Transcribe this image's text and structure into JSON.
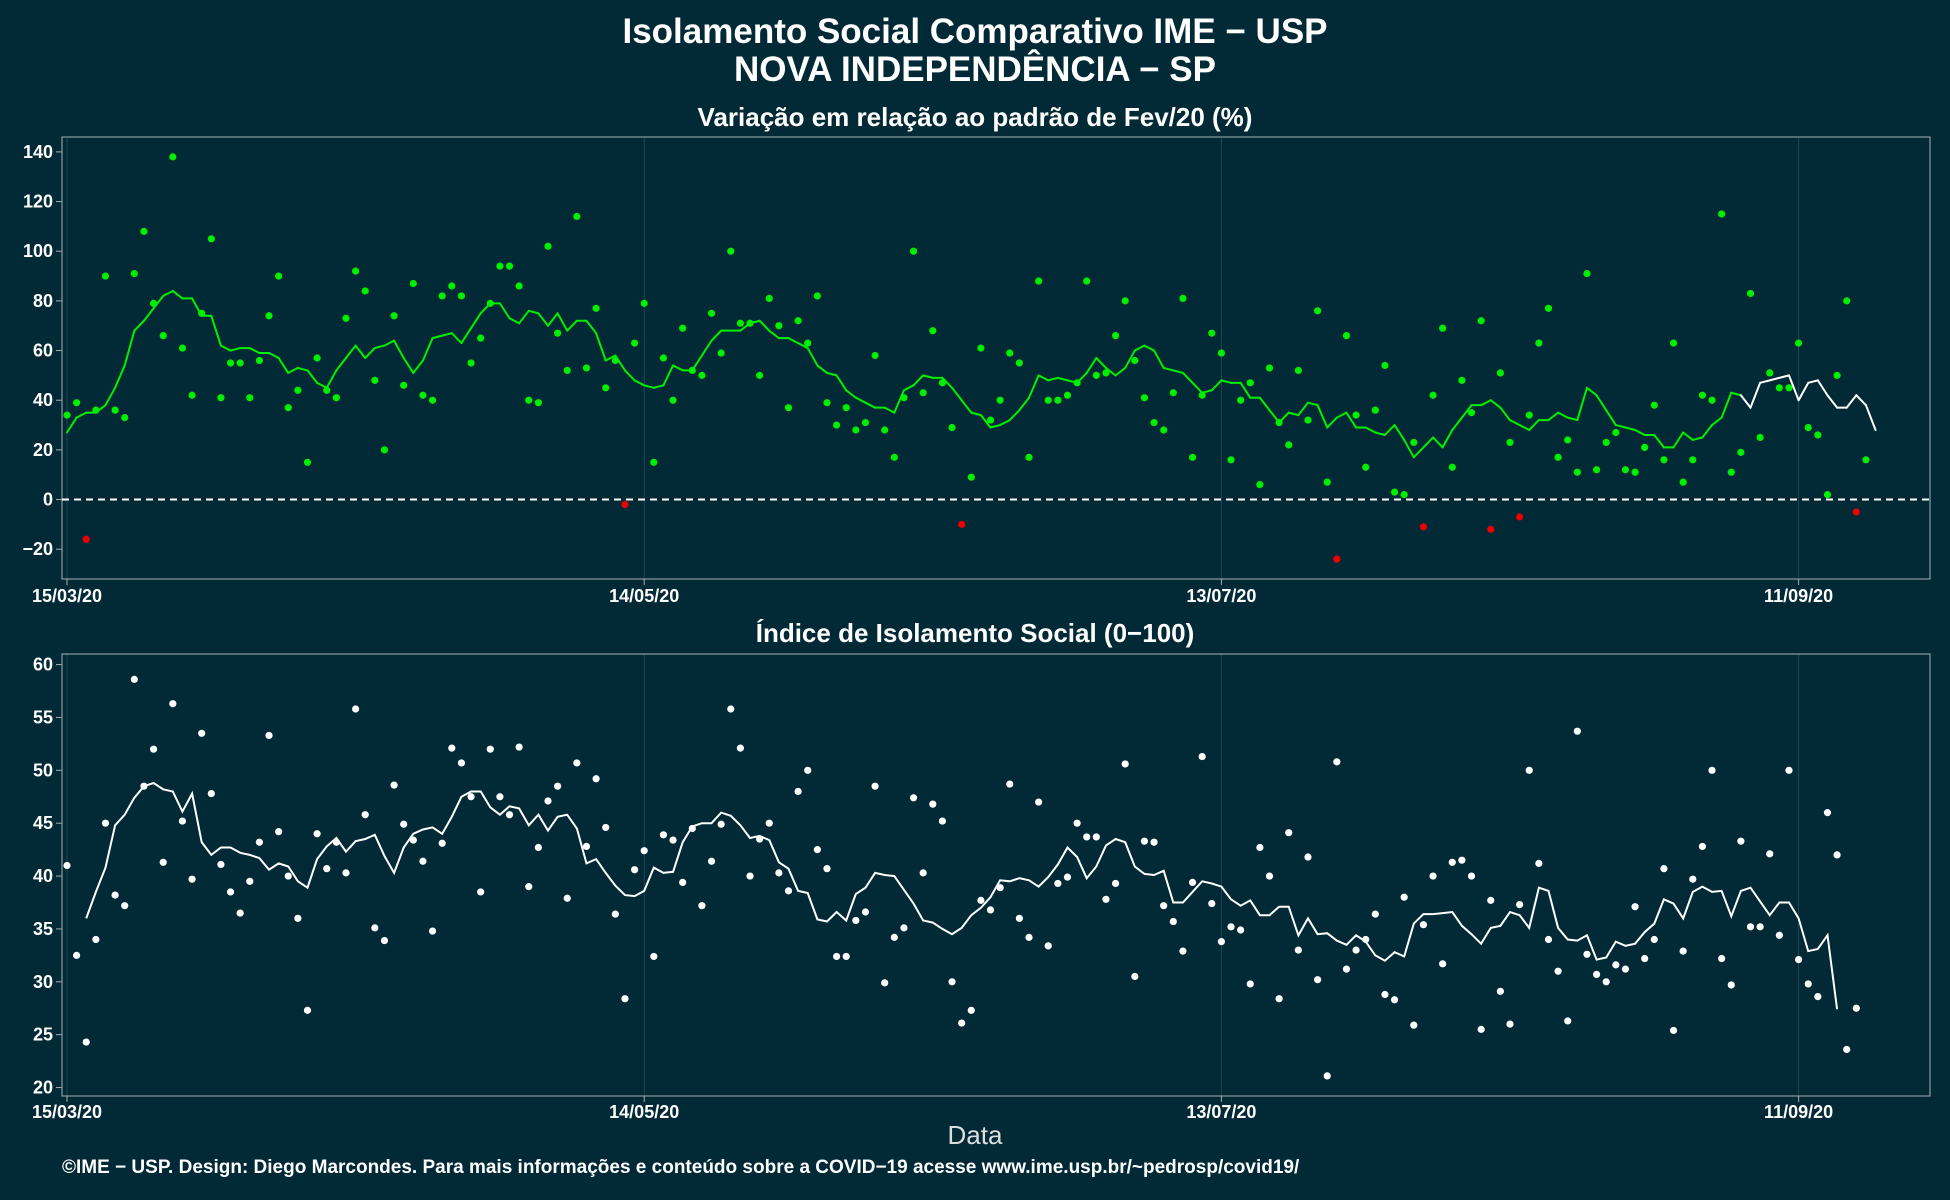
{
  "title_line1": "Isolamento Social Comparativo IME − USP",
  "title_line2": "NOVA INDEPENDÊNCIA − SP",
  "xlabel": "Data",
  "footer": "©IME − USP. Design: Diego Marcondes. Para mais informações e conteúdo sobre a COVID−19 acesse www.ime.usp.br/~pedrosp/covid19/",
  "colors": {
    "background": "#022a36",
    "green": "#00ee00",
    "red": "#ee0000",
    "white": "#ffffff"
  },
  "chart_data": [
    {
      "type": "scatter",
      "title": "Variação em relação ao padrão de Fev/20 (%)",
      "x_ticks": [
        "15/03/20",
        "14/05/20",
        "13/07/20",
        "11/09/20"
      ],
      "y_ticks": [
        -20,
        0,
        20,
        40,
        60,
        80,
        100,
        120,
        140
      ],
      "xlim": [
        "15/03/20",
        "23/09/20"
      ],
      "ylim": [
        -32,
        146
      ],
      "reference_line": 0,
      "grid": true,
      "series": [
        {
          "style": "points",
          "values": [
            34,
            39,
            -16,
            36,
            90,
            36,
            33,
            91,
            108,
            79,
            66,
            138,
            61,
            42,
            75,
            105,
            41,
            55,
            55,
            41,
            56,
            74,
            90,
            37,
            44,
            15,
            57,
            44,
            41,
            73,
            92,
            84,
            48,
            20,
            74,
            46,
            87,
            42,
            40,
            82,
            86,
            82,
            55,
            65,
            79,
            94,
            94,
            86,
            40,
            39,
            102,
            67,
            52,
            114,
            53,
            77,
            45,
            56,
            -2,
            63,
            79,
            15,
            57,
            40,
            69,
            52,
            50,
            75,
            59,
            100,
            71,
            71,
            50,
            81,
            70,
            37,
            72,
            63,
            82,
            39,
            30,
            37,
            28,
            31,
            58,
            28,
            17,
            41,
            100,
            43,
            68,
            47,
            29,
            -10,
            9,
            61,
            32,
            40,
            59,
            55,
            17,
            88,
            40,
            40,
            42,
            47,
            88,
            50,
            51,
            66,
            80,
            56,
            41,
            31,
            28,
            43,
            81,
            17,
            42,
            67,
            59,
            16,
            40,
            47,
            6,
            53,
            31,
            22,
            52,
            32,
            76,
            7,
            -24,
            66,
            34,
            13,
            36,
            54,
            3,
            2,
            23,
            -11,
            42,
            69,
            13,
            48,
            35,
            72,
            -12,
            51,
            23,
            -7,
            34,
            63,
            77,
            17,
            24,
            11,
            91,
            12,
            23,
            27,
            12,
            11,
            21,
            38,
            16,
            63,
            7,
            16,
            42,
            40,
            115,
            11,
            19,
            83,
            25,
            51,
            45,
            45,
            63,
            29,
            26,
            2,
            50,
            80,
            -5,
            16
          ]
        },
        {
          "style": "line",
          "name": "",
          "values": [
            27,
            33,
            35,
            35,
            38,
            45,
            54,
            68,
            72,
            77,
            82,
            84,
            81,
            81,
            74,
            74,
            62,
            60,
            61,
            61,
            59,
            59,
            57,
            51,
            53,
            52,
            47,
            45,
            52,
            57,
            62,
            57,
            61,
            62,
            64,
            57,
            51,
            56,
            65,
            66,
            67,
            63,
            69,
            75,
            79,
            79,
            73,
            71,
            76,
            75,
            70,
            75,
            68,
            72,
            72,
            67,
            56,
            58,
            52,
            48,
            46,
            45,
            46,
            54,
            52,
            52,
            58,
            64,
            68,
            68,
            68,
            71,
            72,
            68,
            65,
            65,
            63,
            61,
            54,
            51,
            50,
            44,
            41,
            39,
            37,
            37,
            35,
            44,
            46,
            50,
            49,
            49,
            45,
            40,
            35,
            34,
            29,
            30,
            32,
            36,
            41,
            50,
            48,
            49,
            48,
            47,
            51,
            57,
            53,
            50,
            53,
            60,
            62,
            60,
            53,
            52,
            51,
            47,
            43,
            44,
            48,
            47,
            47,
            41,
            41,
            36,
            31,
            35,
            34,
            39,
            38,
            29,
            33,
            35,
            29,
            29,
            27,
            26,
            30,
            24,
            17,
            21,
            25,
            21,
            28,
            33,
            38,
            38,
            40,
            37,
            32,
            30,
            28,
            32,
            32,
            35,
            33,
            32,
            45,
            42,
            36,
            30,
            29,
            28,
            26,
            26,
            21,
            21,
            27,
            24,
            25,
            30,
            33,
            43,
            42,
            37,
            47,
            48,
            49,
            50,
            40,
            47,
            48,
            42,
            37,
            37,
            42,
            38,
            28
          ]
        }
      ]
    },
    {
      "type": "scatter",
      "title": "Índice de Isolamento Social (0−100)",
      "x_ticks": [
        "15/03/20",
        "14/05/20",
        "13/07/20",
        "11/09/20"
      ],
      "y_ticks": [
        20,
        25,
        30,
        35,
        40,
        45,
        50,
        55,
        60
      ],
      "xlim": [
        "15/03/20",
        "23/09/20"
      ],
      "ylim": [
        19.2,
        61
      ],
      "grid": true,
      "series": [
        {
          "style": "points",
          "values": [
            41,
            32.5,
            24.3,
            34,
            45,
            38.2,
            37.2,
            58.6,
            48.5,
            52,
            41.3,
            56.3,
            45.2,
            39.7,
            53.5,
            47.8,
            41.1,
            38.5,
            36.5,
            39.5,
            43.2,
            53.3,
            44.2,
            40,
            36,
            27.3,
            44,
            40.7,
            43.2,
            40.3,
            55.8,
            45.8,
            35.1,
            33.9,
            48.6,
            44.9,
            43.4,
            41.4,
            34.8,
            43.1,
            52.1,
            50.7,
            47.5,
            38.5,
            52,
            47.5,
            45.8,
            52.2,
            39,
            42.7,
            47.1,
            48.5,
            37.9,
            50.7,
            42.8,
            49.2,
            44.6,
            36.4,
            28.4,
            40.6,
            42.4,
            32.4,
            43.9,
            43.4,
            39.4,
            44.5,
            37.2,
            41.4,
            44.9,
            55.8,
            52.1,
            40,
            43.5,
            45,
            40.3,
            38.6,
            48,
            50,
            42.5,
            40.7,
            32.4,
            32.4,
            35.8,
            36.6,
            48.5,
            29.9,
            34.2,
            35.1,
            47.4,
            40.3,
            46.8,
            45.2,
            30,
            26.1,
            27.3,
            37.7,
            36.8,
            38.9,
            48.7,
            36,
            34.2,
            47,
            33.4,
            39.3,
            39.9,
            45,
            43.7,
            43.7,
            37.8,
            39.3,
            50.6,
            30.5,
            43.3,
            43.2,
            37.2,
            35.7,
            32.9,
            39.4,
            51.3,
            37.4,
            33.8,
            35.2,
            34.9,
            29.8,
            42.7,
            40,
            28.4,
            44.1,
            33,
            41.8,
            30.2,
            21.1,
            50.8,
            31.2,
            33,
            34,
            36.4,
            28.8,
            28.3,
            38,
            25.9,
            35.4,
            40,
            31.7,
            41.3,
            41.5,
            40,
            25.5,
            37.7,
            29.1,
            26,
            37.3,
            50,
            41.2,
            34,
            31,
            26.3,
            53.7,
            32.6,
            30.7,
            30,
            31.6,
            31.2,
            37.1,
            32.2,
            34,
            40.7,
            25.4,
            32.9,
            39.7,
            42.8,
            50,
            32.2,
            29.7,
            43.3,
            35.2,
            35.2,
            42.1,
            34.4,
            50,
            32.1,
            29.8,
            28.6,
            46,
            42,
            23.6,
            27.5
          ]
        },
        {
          "style": "line",
          "name": "",
          "values": [
            36,
            38.5,
            40.8,
            44.8,
            45.8,
            47.4,
            48.5,
            48.8,
            48.2,
            48,
            46.1,
            47.8,
            43.2,
            42,
            42.7,
            42.7,
            42.2,
            42,
            41.7,
            40.6,
            41.2,
            40.9,
            39.5,
            38.9,
            41.6,
            42.8,
            43.6,
            42.3,
            43.3,
            43.5,
            43.9,
            41.9,
            40.3,
            42.7,
            44,
            44.4,
            44.6,
            44,
            45.6,
            47.5,
            48,
            48,
            46.5,
            45.8,
            46.6,
            46.4,
            44.8,
            45.8,
            44.3,
            45.6,
            45.8,
            44.5,
            41.2,
            41.6,
            40.3,
            39.1,
            38.2,
            38.1,
            38.6,
            40.8,
            40.3,
            40.4,
            43.2,
            44.7,
            45,
            45,
            46,
            45.7,
            44.8,
            43.6,
            43.8,
            43.4,
            41.3,
            40.7,
            38.6,
            38.4,
            35.9,
            35.7,
            36.6,
            35.8,
            38.3,
            38.9,
            40.3,
            40.1,
            40,
            38.7,
            37.4,
            35.8,
            35.6,
            35,
            34.5,
            35.1,
            36.3,
            37,
            38,
            39.6,
            39.5,
            39.8,
            39.6,
            39,
            39.9,
            41.1,
            42.7,
            41.8,
            39.8,
            40.9,
            42.9,
            43.5,
            43.2,
            40.9,
            40.2,
            40.1,
            40.5,
            37.5,
            37.5,
            38.5,
            39.5,
            39.3,
            39,
            37.8,
            37.2,
            37.7,
            36.3,
            36.3,
            37.1,
            37.1,
            34.4,
            36,
            34.5,
            34.6,
            33.9,
            33.5,
            34.4,
            33.8,
            32.5,
            32,
            32.8,
            32.4,
            35.5,
            36.4,
            36.4,
            36.5,
            36.6,
            35.3,
            34.5,
            33.6,
            35.1,
            35.3,
            36.6,
            36.3,
            35.1,
            38.9,
            38.6,
            35.1,
            34,
            33.9,
            34.4,
            32.1,
            32.3,
            33.8,
            33.4,
            33.6,
            34.7,
            35.5,
            37.8,
            37.4,
            36,
            38.5,
            39,
            38.5,
            38.6,
            36.2,
            38.6,
            38.9,
            37.6,
            36.3,
            37.5,
            37.5,
            36,
            32.9,
            33.1,
            34.4,
            27.4
          ]
        }
      ]
    }
  ]
}
